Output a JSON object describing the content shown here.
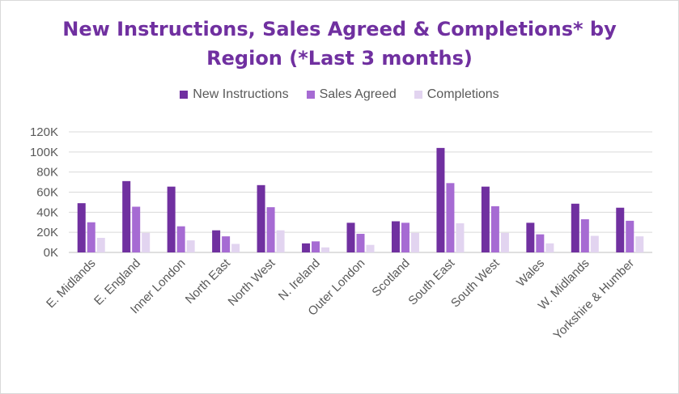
{
  "chart_data": {
    "type": "bar",
    "title_line1": "New Instructions, Sales Agreed & Completions* by",
    "title_line2": "Region (*Last 3 months)",
    "categories": [
      "E. Midlands",
      "E. England",
      "Inner London",
      "North East",
      "North West",
      "N. Ireland",
      "Outer London",
      "Scotland",
      "South East",
      "South West",
      "Wales",
      "W. Midlands",
      "Yorkshire & Humber"
    ],
    "series": [
      {
        "name": "New Instructions",
        "color": "#7030a0",
        "values": [
          49000,
          71000,
          65500,
          22000,
          67000,
          9000,
          29500,
          31000,
          104000,
          65500,
          29500,
          48500,
          44500
        ]
      },
      {
        "name": "Sales Agreed",
        "color": "#a66bd3",
        "values": [
          30000,
          45500,
          26000,
          16000,
          45000,
          11000,
          18500,
          29500,
          69000,
          46000,
          18000,
          33000,
          31500
        ]
      },
      {
        "name": "Completions",
        "color": "#e2d4f0",
        "values": [
          14500,
          19500,
          12000,
          8500,
          22000,
          5000,
          7500,
          19500,
          29000,
          19500,
          9000,
          16500,
          16000
        ]
      }
    ],
    "yticks": [
      "0K",
      "20K",
      "40K",
      "60K",
      "80K",
      "100K",
      "120K"
    ],
    "ylim": [
      0,
      120000
    ],
    "grid": true,
    "legend": "top"
  }
}
